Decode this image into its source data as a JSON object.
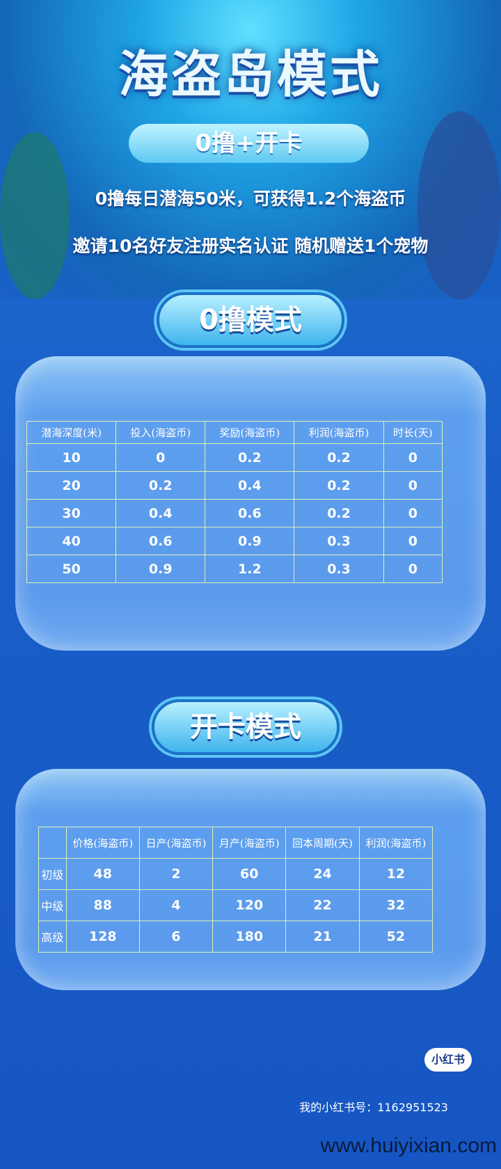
{
  "header": {
    "title": "海盗岛模式",
    "banner": "0撸+开卡",
    "line1": "0撸每日潜海50米，可获得1.2个海盗币",
    "line2": "邀请10名好友注册实名认证 随机赠送1个宠物"
  },
  "zero_mode": {
    "button": "0撸模式",
    "columns": [
      "潜海深度(米)",
      "投入(海盗币)",
      "奖励(海盗币)",
      "利润(海盗币)",
      "时长(天)"
    ],
    "rows": [
      [
        "10",
        "0",
        "0.2",
        "0.2",
        "0"
      ],
      [
        "20",
        "0.2",
        "0.4",
        "0.2",
        "0"
      ],
      [
        "30",
        "0.4",
        "0.6",
        "0.2",
        "0"
      ],
      [
        "40",
        "0.6",
        "0.9",
        "0.3",
        "0"
      ],
      [
        "50",
        "0.9",
        "1.2",
        "0.3",
        "0"
      ]
    ]
  },
  "card_mode": {
    "button": "开卡模式",
    "columns": [
      "",
      "价格(海盗币)",
      "日产(海盗币)",
      "月产(海盗币)",
      "回本周期(天)",
      "利润(海盗币)"
    ],
    "rows": [
      [
        "初级",
        "48",
        "2",
        "60",
        "24",
        "12"
      ],
      [
        "中级",
        "88",
        "4",
        "120",
        "22",
        "32"
      ],
      [
        "高级",
        "128",
        "6",
        "180",
        "21",
        "52"
      ]
    ]
  },
  "footer": {
    "badge": "小红书",
    "account": "我的小红书号：1162951523",
    "watermark": "www.huiyixian.com"
  }
}
